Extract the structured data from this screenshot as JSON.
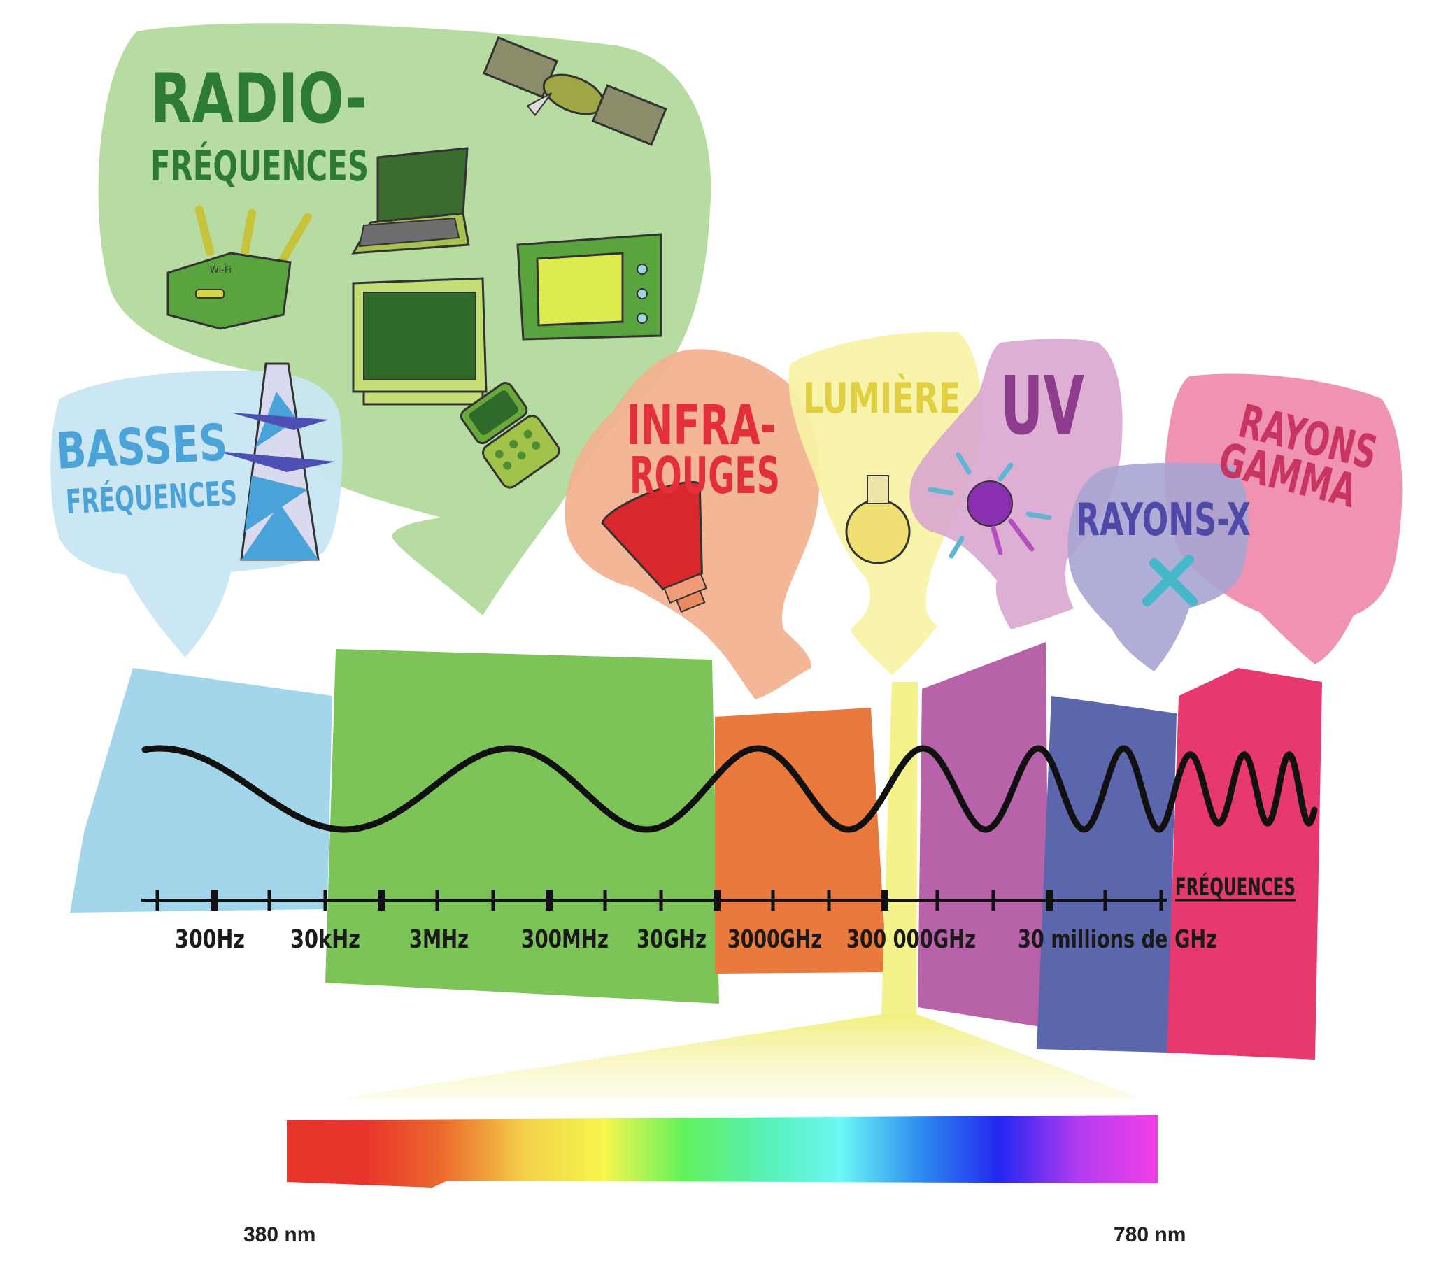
{
  "colors": {
    "basses": "#a3d6ea",
    "radio": "#7dc458",
    "radio_bubble": "#b7dca1",
    "infra": "#e9793d",
    "infra_bubble": "#f2b08e",
    "lumiere": "#f4f28b",
    "lumiere_bubble": "#f8f3a6",
    "uv": "#b862a9",
    "uv_bubble": "#d9a6cf",
    "rayonsx": "#5b66ad",
    "rayonsx_bubble": "#a7a4d2",
    "gamma": "#e8396e",
    "gamma_bubble": "#ef8aab"
  },
  "bubbles": {
    "radio": {
      "line1": "RADIO-",
      "line2": "FRÉQUENCES"
    },
    "basses": {
      "line1": "BASSES",
      "line2": "FRÉQUENCES"
    },
    "infra": {
      "line1": "INFRA-",
      "line2": "ROUGES"
    },
    "lumiere": {
      "line1": "LUMIÈRE"
    },
    "uv": {
      "line1": "UV"
    },
    "rayonsx": {
      "line1": "RAYONS-X"
    },
    "gamma": {
      "line1": "RAYONS",
      "line2": "GAMMA"
    }
  },
  "icons": [
    "satellite-icon",
    "laptop-icon",
    "wifi-router-icon",
    "microwave-icon",
    "television-icon",
    "mobile-phone-icon",
    "pylon-icon",
    "heat-lamp-icon",
    "light-bulb-icon",
    "sun-icon",
    "x-icon"
  ],
  "router_text": "Wi-Fi",
  "axis": {
    "title": "FRÉQUENCES",
    "ticks": [
      "300Hz",
      "30kHz",
      "3MHz",
      "300MHz",
      "30GHz",
      "3000GHz",
      "300 000GHz",
      "30 millions de GHz"
    ]
  },
  "spectrum": {
    "start_label": "380 nm",
    "end_label": "780 nm",
    "gradient_stops": [
      "#e8352b",
      "#e8352b",
      "#ed6d2d",
      "#f3d049",
      "#f6f64c",
      "#63f25c",
      "#57f0b3",
      "#6cf7f5",
      "#2e8cf0",
      "#2227f0",
      "#b33bf0",
      "#f23fe6"
    ]
  }
}
